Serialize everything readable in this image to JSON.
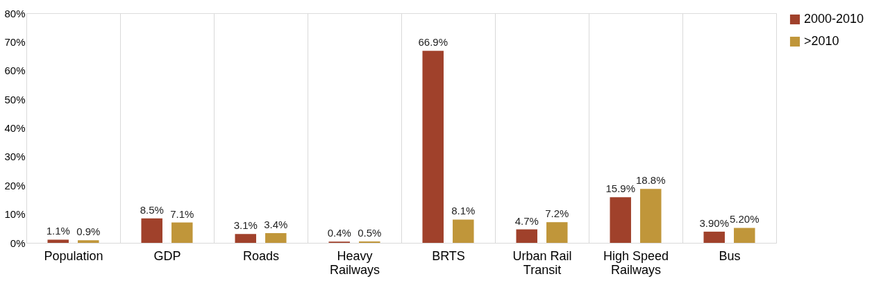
{
  "chart_data": {
    "type": "bar",
    "categories": [
      "Population",
      "GDP",
      "Roads",
      "Heavy Railways",
      "BRTS",
      "Urban Rail Transit",
      "High Speed Railways",
      "Bus"
    ],
    "series": [
      {
        "name": "2000-2010",
        "color": "#a0412b",
        "values": [
          1.1,
          8.5,
          3.1,
          0.4,
          66.9,
          4.7,
          15.9,
          3.9
        ],
        "value_labels": [
          "1.1%",
          "8.5%",
          "3.1%",
          "0.4%",
          "66.9%",
          "4.7%",
          "15.9%",
          "3.90%"
        ]
      },
      {
        "name": ">2010",
        "color": "#c0963a",
        "values": [
          0.9,
          7.1,
          3.4,
          0.5,
          8.1,
          7.2,
          18.8,
          5.2
        ],
        "value_labels": [
          "0.9%",
          "7.1%",
          "3.4%",
          "0.5%",
          "8.1%",
          "7.2%",
          "18.8%",
          "5.20%"
        ]
      }
    ],
    "ylim": [
      0,
      80
    ],
    "yticks": [
      {
        "value": 0,
        "label": "0%"
      },
      {
        "value": 10,
        "label": "10%"
      },
      {
        "value": 20,
        "label": "20%"
      },
      {
        "value": 30,
        "label": "30%"
      },
      {
        "value": 40,
        "label": "40%"
      },
      {
        "value": 50,
        "label": "50%"
      },
      {
        "value": 60,
        "label": "60%"
      },
      {
        "value": 70,
        "label": "70%"
      },
      {
        "value": 80,
        "label": "80%"
      }
    ],
    "grid": "x",
    "legend": "right"
  }
}
